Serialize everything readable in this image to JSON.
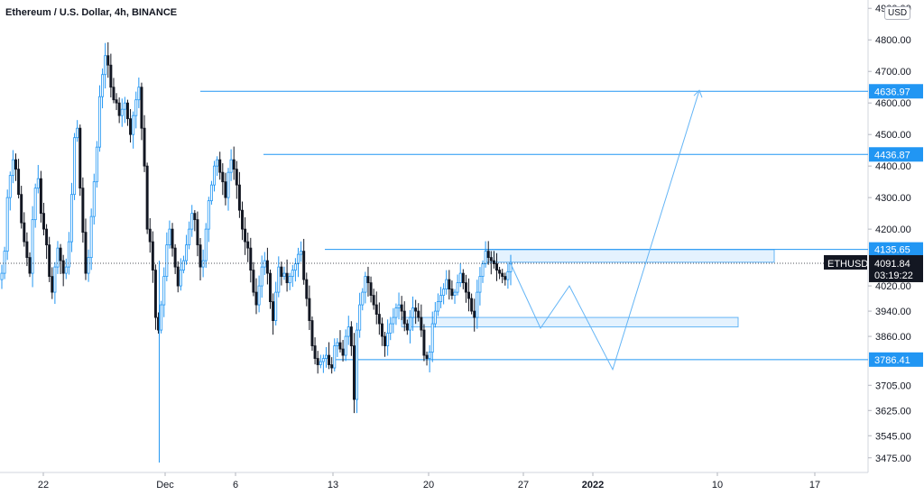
{
  "header": {
    "title": "Ethereum / U.S. Dollar, 4h, BINANCE",
    "currency": "USD"
  },
  "chart_data": {
    "type": "candlestick",
    "ylim": [
      3440,
      4915
    ],
    "price_ticks": [
      4900,
      4800,
      4700,
      4600,
      4500,
      4400,
      4300,
      4200,
      4020,
      3940,
      3860,
      3705,
      3625,
      3545,
      3475
    ],
    "price_tick_labels": [
      "4900.00",
      "4800.00",
      "4700.00",
      "4600.00",
      "4500.00",
      "4400.00",
      "4300.00",
      "4200.00",
      "4020.00",
      "3940.00",
      "3860.00",
      "3705.00",
      "3625.00",
      "3545.00",
      "3475.00"
    ],
    "date_labels": [
      "22",
      "Dec",
      "6",
      "13",
      "20",
      "27",
      "2022",
      "10",
      "17"
    ],
    "date_label_bold": [
      false,
      false,
      false,
      false,
      false,
      false,
      true,
      false,
      false
    ],
    "levels": [
      {
        "value": 4636.97,
        "label": "4636.97",
        "start_date": "Dec 2"
      },
      {
        "value": 4436.87,
        "label": "4436.87",
        "start_date": "Dec 8"
      },
      {
        "value": 4135.65,
        "label": "4135.65",
        "start_date": "Dec 11"
      },
      {
        "value": 3786.41,
        "label": "3786.41",
        "start_date": "Dec 13"
      }
    ],
    "current_price": {
      "symbol": "ETHUSD",
      "value": 4091.84,
      "label": "4091.84",
      "countdown": "03:19:22"
    },
    "zones": [
      {
        "from": 4095,
        "to": 4135
      },
      {
        "from": 3890,
        "to": 3920
      }
    ],
    "projection_path": [
      3886,
      4020,
      3755,
      4640
    ],
    "price_path": [
      4060,
      4130,
      4300,
      4370,
      4420,
      4390,
      4310,
      4220,
      4160,
      4110,
      4060,
      4230,
      4330,
      4360,
      4250,
      4200,
      4150,
      4050,
      4000,
      4080,
      4140,
      4100,
      4060,
      4080,
      4160,
      4310,
      4490,
      4520,
      4330,
      4190,
      4060,
      4110,
      4240,
      4350,
      4460,
      4620,
      4690,
      4750,
      4720,
      4650,
      4610,
      4600,
      4560,
      4580,
      4600,
      4550,
      4500,
      4560,
      4610,
      4650,
      4520,
      4400,
      4200,
      4160,
      4070,
      3920,
      3880,
      3960,
      4050,
      4150,
      4200,
      4140,
      4080,
      4020,
      4070,
      4100,
      4150,
      4200,
      4250,
      4230,
      4150,
      4080,
      4100,
      4200,
      4290,
      4340,
      4400,
      4420,
      4380,
      4350,
      4300,
      4380,
      4420,
      4390,
      4340,
      4260,
      4200,
      4160,
      4140,
      4070,
      4000,
      3960,
      4020,
      4080,
      4100,
      4060,
      3970,
      3910,
      4000,
      4080,
      4050,
      4060,
      4030,
      4050,
      4070,
      4090,
      4120,
      4130,
      4040,
      3980,
      3910,
      3830,
      3790,
      3770,
      3780,
      3790,
      3800,
      3770,
      3760,
      3830,
      3840,
      3820,
      3800,
      3860,
      3890,
      3830,
      3660,
      3880,
      3960,
      4000,
      4050,
      4030,
      3990,
      3960,
      3930,
      3900,
      3860,
      3830,
      3870,
      3900,
      3920,
      3950,
      3960,
      3940,
      3900,
      3880,
      3920,
      3950,
      3940,
      3920,
      3880,
      3800,
      3790,
      3810,
      3900,
      3940,
      3970,
      3990,
      4010,
      4040,
      4010,
      3990,
      4000,
      4030,
      4060,
      4030,
      4000,
      3980,
      3940,
      3920,
      4000,
      4050,
      4090,
      4130,
      4110,
      4100,
      4090,
      4070,
      4060,
      4050,
      4040,
      4065,
      4090
    ]
  }
}
